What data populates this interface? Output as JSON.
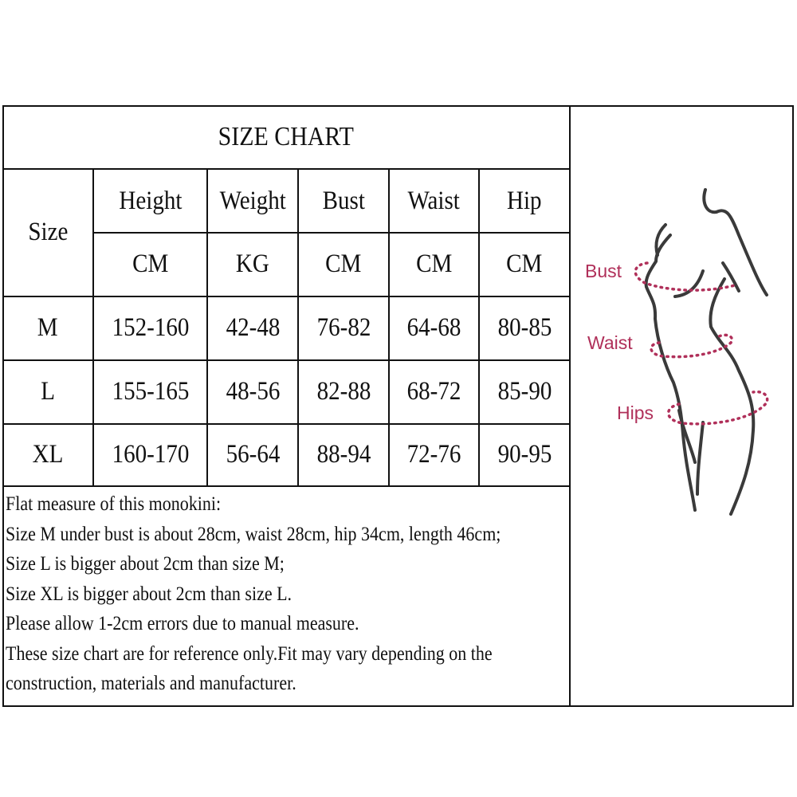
{
  "title": "SIZE CHART",
  "size_header": "Size",
  "columns": [
    {
      "name": "Height",
      "unit": "CM"
    },
    {
      "name": "Weight",
      "unit": "KG"
    },
    {
      "name": "Bust",
      "unit": "CM"
    },
    {
      "name": "Waist",
      "unit": "CM"
    },
    {
      "name": "Hip",
      "unit": "CM"
    }
  ],
  "rows": [
    {
      "size": "M",
      "values": [
        "152-160",
        "42-48",
        "76-82",
        "64-68",
        "80-85"
      ]
    },
    {
      "size": "L",
      "values": [
        "155-165",
        "48-56",
        "82-88",
        "68-72",
        "85-90"
      ]
    },
    {
      "size": "XL",
      "values": [
        "160-170",
        "56-64",
        "88-94",
        "72-76",
        "90-95"
      ]
    }
  ],
  "notes": [
    "Flat measure of this monokini:",
    "Size M under bust is about 28cm, waist 28cm, hip 34cm, length 46cm;",
    "Size L is bigger about 2cm than size M;",
    "Size XL is bigger about 2cm than size L.",
    "Please allow 1-2cm errors due to manual measure.",
    "These size chart are for reference only.Fit may vary depending on the",
    "construction, materials and manufacturer."
  ],
  "figure": {
    "labels": [
      "Bust",
      "Waist",
      "Hips"
    ],
    "accent_color": "#b0305a"
  }
}
